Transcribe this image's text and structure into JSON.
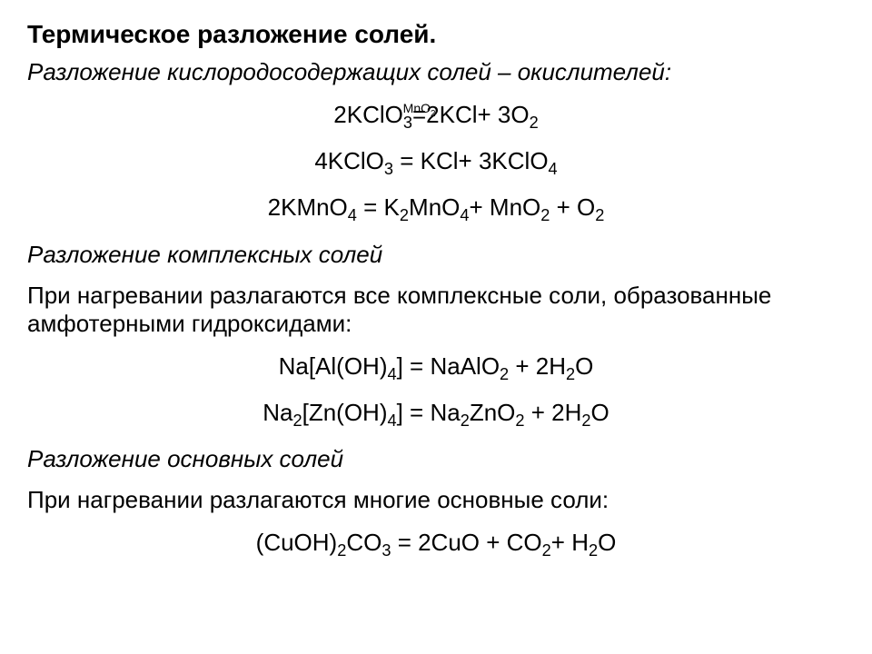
{
  "title": "Термическое разложение солей.",
  "section1": {
    "heading": "Разложение кислородосодержащих солей – окислителей:",
    "eq1_left": "2KClO",
    "eq1_sub1": "3",
    "eq1_over": "MnO",
    "eq1_over_sub": "2",
    "eq1_eq": " = ",
    "eq1_right_a": "2KCl+ 3O",
    "eq1_sub2": "2",
    "eq2_a": "4KClO",
    "eq2_sub1": "3",
    "eq2_mid": " = KCl+ 3KClO",
    "eq2_sub2": "4",
    "eq3_a": "2KMnO",
    "eq3_sub1": "4",
    "eq3_b": " = K",
    "eq3_sub2": "2",
    "eq3_c": "MnO",
    "eq3_sub3": "4",
    "eq3_d": "+ MnO",
    "eq3_sub4": "2",
    "eq3_e": " + O",
    "eq3_sub5": "2"
  },
  "section2": {
    "heading": "Разложение комплексных солей",
    "body": "При нагревании разлагаются все комплексные соли, образованные амфотерными гидроксидами:",
    "eq4_a": "Na[Al(OH)",
    "eq4_sub1": "4",
    "eq4_b": "] = NaAlO",
    "eq4_sub2": "2",
    "eq4_c": " + 2H",
    "eq4_sub3": "2",
    "eq4_d": "O",
    "eq5_a": "Na",
    "eq5_sub1": "2",
    "eq5_b": "[Zn(OH)",
    "eq5_sub2": "4",
    "eq5_c": "] = Na",
    "eq5_sub3": "2",
    "eq5_d": "ZnO",
    "eq5_sub4": "2",
    "eq5_e": " + 2H",
    "eq5_sub5": "2",
    "eq5_f": "O"
  },
  "section3": {
    "heading": "Разложение основных солей",
    "body": "При нагревании разлагаются многие основные соли:",
    "eq6_a": "(CuOH)",
    "eq6_sub1": "2",
    "eq6_b": "CO",
    "eq6_sub2": "3",
    "eq6_c": " = 2CuO  + CO",
    "eq6_sub3": "2",
    "eq6_d": "+ H",
    "eq6_sub4": "2",
    "eq6_e": "O"
  }
}
